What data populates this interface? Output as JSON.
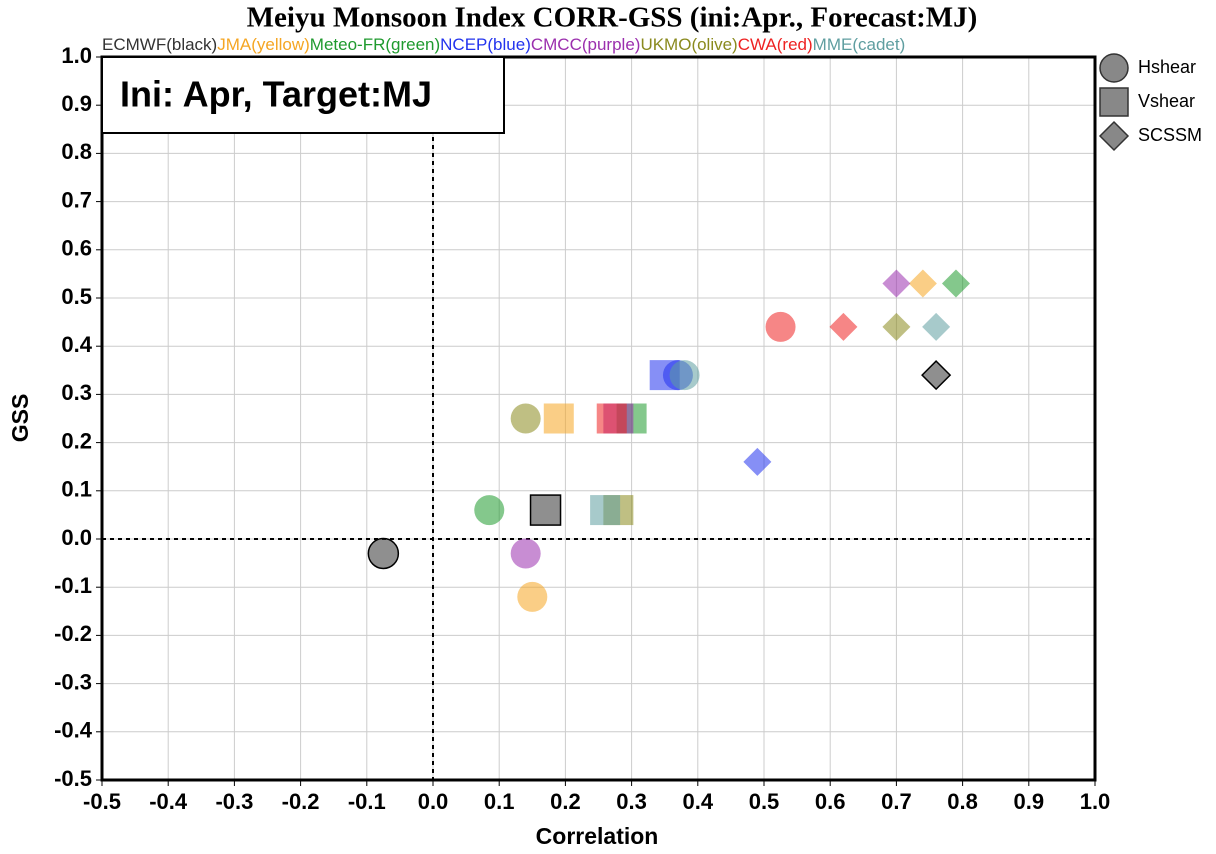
{
  "chart_data": {
    "type": "scatter",
    "title": "Meiyu Monsoon Index CORR-GSS (ini:Apr., Forecast:MJ)",
    "annotation": "Ini: Apr, Target:MJ",
    "x_label": "Correlation",
    "y_label": "GSS",
    "xlim": [
      -0.5,
      1.0
    ],
    "ylim": [
      -0.5,
      1.0
    ],
    "xticks": [
      -0.5,
      -0.4,
      -0.3,
      -0.2,
      -0.1,
      {
        "value": 0,
        "label": "0.0"
      },
      0.1,
      0.2,
      0.3,
      0.4,
      0.5,
      0.6,
      0.7,
      0.8,
      0.9,
      {
        "value": 1,
        "label": "1.0"
      }
    ],
    "yticks": [
      -0.5,
      -0.4,
      -0.3,
      -0.2,
      -0.1,
      {
        "value": 0,
        "label": "0.0"
      },
      0.1,
      0.2,
      0.3,
      0.4,
      0.5,
      0.6,
      0.7,
      0.8,
      0.9,
      {
        "value": 1,
        "label": "1.0"
      }
    ],
    "grid": true,
    "shape_legend": [
      "Hshear",
      "Vshear",
      "SCSSM"
    ],
    "series": [
      {
        "name": "ECMWF(black)",
        "color": "#333333",
        "x": [
          -0.075,
          0.17,
          0.76
        ],
        "y": [
          -0.03,
          0.06,
          0.34
        ]
      },
      {
        "name": "JMA(yellow)",
        "color": "#f5a623",
        "x": [
          0.15,
          0.19,
          0.74
        ],
        "y": [
          -0.12,
          0.25,
          0.53
        ]
      },
      {
        "name": "Meteo-FR(green)",
        "color": "#1f9a2e",
        "x": [
          0.085,
          0.3,
          0.79
        ],
        "y": [
          0.06,
          0.25,
          0.53
        ]
      },
      {
        "name": "NCEP(blue)",
        "color": "#2233ee",
        "x": [
          0.37,
          0.35,
          0.49
        ],
        "y": [
          0.34,
          0.34,
          0.16
        ]
      },
      {
        "name": "CMCC(purple)",
        "color": "#9b2fae",
        "x": [
          0.14,
          0.28,
          0.7
        ],
        "y": [
          -0.03,
          0.25,
          0.53
        ]
      },
      {
        "name": "UKMO(olive)",
        "color": "#8a8a1e",
        "x": [
          0.14,
          0.28,
          0.7
        ],
        "y": [
          0.25,
          0.06,
          0.44
        ]
      },
      {
        "name": "CWA(red)",
        "color": "#ee2222",
        "x": [
          0.525,
          0.27,
          0.62
        ],
        "y": [
          0.44,
          0.25,
          0.44
        ]
      },
      {
        "name": "MME(cadet)",
        "color": "#5f9ea0",
        "x": [
          0.38,
          0.26,
          0.76
        ],
        "y": [
          0.34,
          0.06,
          0.44
        ]
      }
    ]
  }
}
